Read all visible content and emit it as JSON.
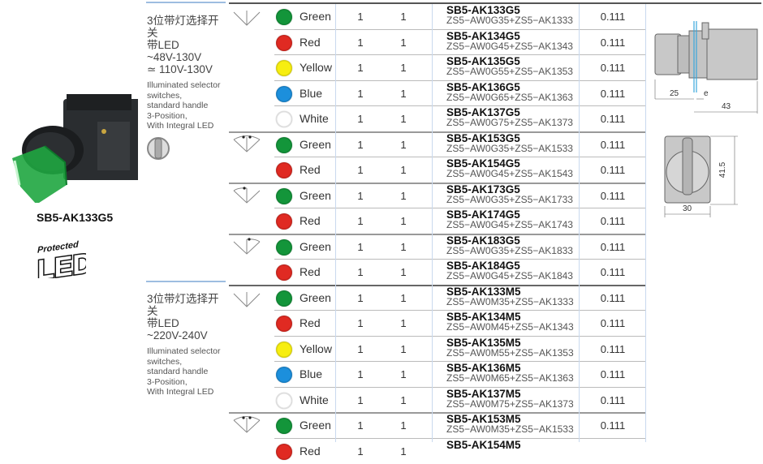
{
  "product": {
    "model": "SB5-AK133G5",
    "logo_text": "Protected LED"
  },
  "sections": [
    {
      "cn": [
        "3位带灯选择开关",
        "带LED",
        "~48V-130V",
        "≃ 110V-130V"
      ],
      "en": [
        "Illuminated selector",
        "switches,",
        "standard handle",
        "3-Position,",
        "With Integral LED"
      ]
    },
    {
      "cn": [
        "3位带灯选择开关",
        "带LED",
        "~220V-240V"
      ],
      "en": [
        "Illuminated selector",
        "switches,",
        "standard handle",
        "3-Position,",
        "With Integral LED"
      ]
    }
  ],
  "colors": {
    "Green": "#13953a",
    "Red": "#e02a22",
    "Yellow": "#f7ee10",
    "Blue": "#1c8fdc",
    "White": "#ffffff"
  },
  "rows": [
    {
      "sym": "center",
      "color": "Green",
      "a": "1",
      "b": "1",
      "ref": "SB5-AK133G5",
      "comp": "ZS5−AW0G35+ZS5−AK1333",
      "w": "0.111",
      "group": true
    },
    {
      "color": "Red",
      "a": "1",
      "b": "1",
      "ref": "SB5-AK134G5",
      "comp": "ZS5−AW0G45+ZS5−AK1343",
      "w": "0.111"
    },
    {
      "color": "Yellow",
      "a": "1",
      "b": "1",
      "ref": "SB5-AK135G5",
      "comp": "ZS5−AW0G55+ZS5−AK1353",
      "w": "0.111"
    },
    {
      "color": "Blue",
      "a": "1",
      "b": "1",
      "ref": "SB5-AK136G5",
      "comp": "ZS5−AW0G65+ZS5−AK1363",
      "w": "0.111"
    },
    {
      "color": "White",
      "a": "1",
      "b": "1",
      "ref": "SB5-AK137G5",
      "comp": "ZS5−AW0G75+ZS5−AK1373",
      "w": "0.111"
    },
    {
      "sym": "both",
      "color": "Green",
      "a": "1",
      "b": "1",
      "ref": "SB5-AK153G5",
      "comp": "ZS5−AW0G35+ZS5−AK1533",
      "w": "0.111",
      "group": true
    },
    {
      "color": "Red",
      "a": "1",
      "b": "1",
      "ref": "SB5-AK154G5",
      "comp": "ZS5−AW0G45+ZS5−AK1543",
      "w": "0.111"
    },
    {
      "sym": "left",
      "color": "Green",
      "a": "1",
      "b": "1",
      "ref": "SB5-AK173G5",
      "comp": "ZS5−AW0G35+ZS5−AK1733",
      "w": "0.111",
      "group": true
    },
    {
      "color": "Red",
      "a": "1",
      "b": "1",
      "ref": "SB5-AK174G5",
      "comp": "ZS5−AW0G45+ZS5−AK1743",
      "w": "0.111"
    },
    {
      "sym": "right",
      "color": "Green",
      "a": "1",
      "b": "1",
      "ref": "SB5-AK183G5",
      "comp": "ZS5−AW0G35+ZS5−AK1833",
      "w": "0.111",
      "group": true
    },
    {
      "color": "Red",
      "a": "1",
      "b": "1",
      "ref": "SB5-AK184G5",
      "comp": "ZS5−AW0G45+ZS5−AK1843",
      "w": "0.111"
    },
    {
      "sym": "center",
      "color": "Green",
      "a": "1",
      "b": "1",
      "ref": "SB5-AK133M5",
      "comp": "ZS5−AW0M35+ZS5−AK1333",
      "w": "0.111",
      "group": true,
      "major": true
    },
    {
      "color": "Red",
      "a": "1",
      "b": "1",
      "ref": "SB5-AK134M5",
      "comp": "ZS5−AW0M45+ZS5−AK1343",
      "w": "0.111"
    },
    {
      "color": "Yellow",
      "a": "1",
      "b": "1",
      "ref": "SB5-AK135M5",
      "comp": "ZS5−AW0M55+ZS5−AK1353",
      "w": "0.111"
    },
    {
      "color": "Blue",
      "a": "1",
      "b": "1",
      "ref": "SB5-AK136M5",
      "comp": "ZS5−AW0M65+ZS5−AK1363",
      "w": "0.111"
    },
    {
      "color": "White",
      "a": "1",
      "b": "1",
      "ref": "SB5-AK137M5",
      "comp": "ZS5−AW0M75+ZS5−AK1373",
      "w": "0.111"
    },
    {
      "sym": "both",
      "color": "Green",
      "a": "1",
      "b": "1",
      "ref": "SB5-AK153M5",
      "comp": "ZS5−AW0M35+ZS5−AK1533",
      "w": "0.111",
      "group": true
    },
    {
      "color": "Red",
      "a": "1",
      "b": "1",
      "ref": "SB5-AK154M5",
      "comp": "",
      "w": ""
    }
  ],
  "dimensions": {
    "side_a": "25",
    "side_e": "e",
    "side_total": "43",
    "front_height": "41.5",
    "front_width": "30"
  }
}
